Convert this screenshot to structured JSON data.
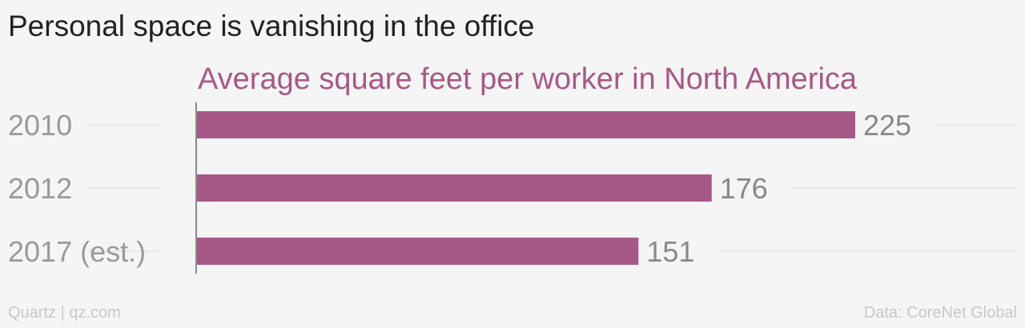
{
  "title": "Personal space is vanishing in the office",
  "footer": {
    "source_left": "Quartz | qz.com",
    "source_right": "Data: CoreNet Global"
  },
  "colors": {
    "bar": "#a85887",
    "subtitle": "#a85887",
    "gridline": "#e4e4e4",
    "axis": "#8a8a8a"
  },
  "chart_data": {
    "type": "bar",
    "orientation": "horizontal",
    "title": "Personal space is vanishing in the office",
    "subtitle": "Average square feet per worker in North America",
    "xlabel": "",
    "ylabel": "",
    "categories": [
      "2010",
      "2012",
      "2017 (est.)"
    ],
    "values": [
      225,
      176,
      151
    ],
    "xlim": [
      0,
      225
    ],
    "grid": true,
    "legend": "none",
    "data_labels": true
  }
}
